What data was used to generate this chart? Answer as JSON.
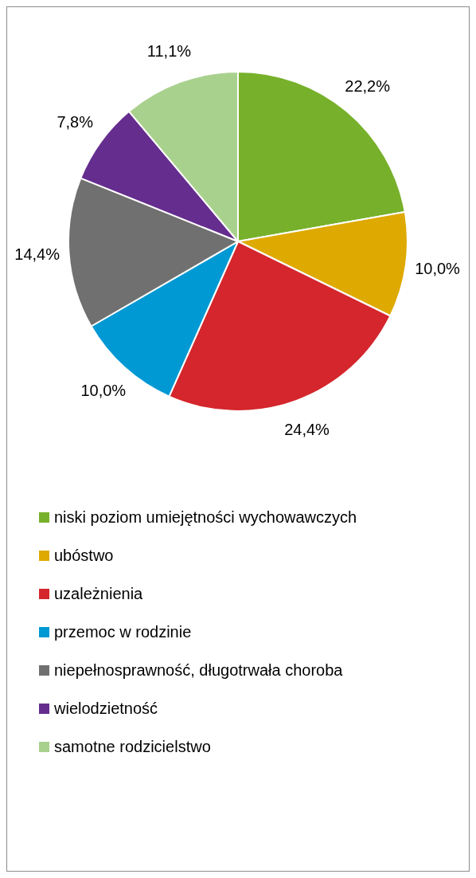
{
  "chart_data": {
    "type": "pie",
    "categories": [
      "niski poziom umiejętności wychowawczych",
      "ubóstwo",
      "uzależnienia",
      "przemoc w rodzinie",
      "niepełnosprawność, długotrwała choroba",
      "wielodzietność",
      "samotne rodzicielstwo"
    ],
    "values": [
      22.2,
      10.0,
      24.4,
      10.0,
      14.4,
      7.8,
      11.1
    ],
    "value_labels": [
      "22,2%",
      "10,0%",
      "24,4%",
      "10,0%",
      "14,4%",
      "7,8%",
      "11,1%"
    ],
    "colors": [
      "#77b02a",
      "#dea900",
      "#d4262c",
      "#0099d4",
      "#707070",
      "#652d8e",
      "#a9d18e"
    ],
    "legend": "bottom"
  }
}
